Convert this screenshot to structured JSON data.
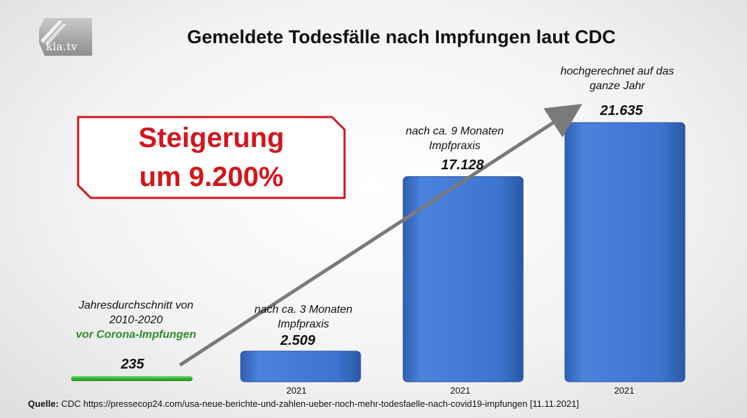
{
  "logo": {
    "text": "kla.tv"
  },
  "title": "Gemeldete Todesfälle nach Impfungen laut CDC",
  "callout": {
    "line1": "Steigerung",
    "line2": "um 9.200%"
  },
  "annotations": {
    "baseline_line1": "Jahresdurchschnitt von",
    "baseline_line2": "2010-2020",
    "baseline_line3": "vor Corona-Impfungen",
    "bar1_line1": "nach ca. 3 Monaten",
    "bar1_line2": "Impfpraxis",
    "bar2_line1": "nach ca. 9 Monaten",
    "bar2_line2": "Impfpraxis",
    "bar3_line1": "hochgerechnet auf das",
    "bar3_line2": "ganze Jahr"
  },
  "source": {
    "label": "Quelle:",
    "text": "CDC https://pressecop24.com/usa-neue-berichte-und-zahlen-ueber-noch-mehr-todesfaelle-nach-covid19-impfungen [11.11.2021]"
  },
  "chart_data": {
    "type": "bar",
    "title": "Gemeldete Todesfälle nach Impfungen laut CDC",
    "categories": [
      "",
      "2021",
      "2021",
      "2021"
    ],
    "values": [
      235,
      2509,
      17128,
      21635
    ],
    "value_labels": [
      "235",
      "2.509",
      "17.128",
      "21.635"
    ],
    "ylim": [
      0,
      21635
    ],
    "grid": false,
    "colors": {
      "bar": "#3d74cf",
      "baseline": "#2aa52a",
      "arrow": "#7a7a7a",
      "callout": "#d3161c",
      "highlight_text": "#2e8b2e"
    }
  }
}
